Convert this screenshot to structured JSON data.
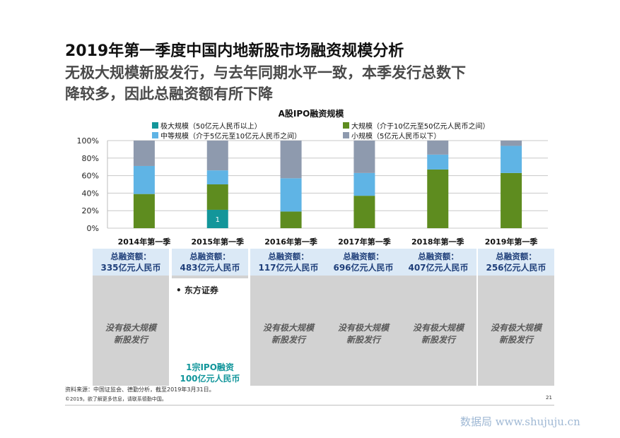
{
  "title": {
    "main": "2019年第一季度中国内地新股市场融资规模分析",
    "sub_line1": "无极大规模新股发行，与去年同期水平一致，本季发行总数下",
    "sub_line2": "降较多，因此总融资额有所下降"
  },
  "colors": {
    "extra_large": "#13969a",
    "large": "#5e8c1f",
    "medium": "#5fb4e5",
    "small": "#8e9aae",
    "panel_head_bg": "#dbe9f6",
    "panel_body_bg": "#d2d2d2",
    "teal_text": "#12969b"
  },
  "chart_data": {
    "type": "bar",
    "title": "A股IPO融资规模",
    "categories": [
      "2014年第一季",
      "2015年第一季",
      "2016年第一季",
      "2017年第一季",
      "2018年第一季",
      "2019年第一季"
    ],
    "ylim": [
      0,
      100
    ],
    "yticks": [
      "0%",
      "20%",
      "40%",
      "60%",
      "80%",
      "100%"
    ],
    "grid": true,
    "legend_position": "top",
    "series": [
      {
        "name": "极大规模（50亿元人民币以上）",
        "color_key": "extra_large",
        "values": [
          0,
          21,
          0,
          0,
          0,
          0
        ],
        "labels": [
          "",
          "1",
          "",
          "",
          "",
          ""
        ]
      },
      {
        "name": "大规模（介于10亿元至50亿元人民币之间）",
        "color_key": "large",
        "values": [
          39,
          29,
          19,
          37,
          67,
          63
        ],
        "labels": [
          "",
          "",
          "",
          "",
          "",
          ""
        ]
      },
      {
        "name": "中等规模（介于5亿元至10亿元人民币之间）",
        "color_key": "medium",
        "values": [
          32,
          16,
          38,
          26,
          17,
          31
        ],
        "labels": [
          "",
          "",
          "",
          "",
          "",
          ""
        ]
      },
      {
        "name": "小规模（5亿元人民币以下）",
        "color_key": "small",
        "values": [
          29,
          34,
          43,
          37,
          16,
          6
        ],
        "labels": [
          "",
          "",
          "",
          "",
          "",
          ""
        ]
      }
    ]
  },
  "panels": [
    {
      "head": "总融资额：",
      "amount": "335亿元人民币",
      "note1": "没有极大规模",
      "note2": "新股发行",
      "bullet": "",
      "teal1": "",
      "teal2": ""
    },
    {
      "head": "总融资额：",
      "amount": "483亿元人民币",
      "note1": "",
      "note2": "",
      "bullet": "• 东方证券",
      "teal1": "1宗IPO融资",
      "teal2": "100亿元人民币"
    },
    {
      "head": "总融资额：",
      "amount": "117亿元人民币",
      "note1": "没有极大规模",
      "note2": "新股发行",
      "bullet": "",
      "teal1": "",
      "teal2": ""
    },
    {
      "head": "总融资额：",
      "amount": "696亿元人民币",
      "note1": "没有极大规模",
      "note2": "新股发行",
      "bullet": "",
      "teal1": "",
      "teal2": ""
    },
    {
      "head": "总融资额：",
      "amount": "407亿元人民币",
      "note1": "没有极大规模",
      "note2": "新股发行",
      "bullet": "",
      "teal1": "",
      "teal2": ""
    },
    {
      "head": "总融资额：",
      "amount": "256亿元人民币",
      "note1": "没有极大规模",
      "note2": "新股发行",
      "bullet": "",
      "teal1": "",
      "teal2": ""
    }
  ],
  "footer": {
    "source": "资料来源：中国证监会、德勤分析，截至2019年3月31日。",
    "copyright": "©2019。欲了解更多信息，请联系德勤中国。",
    "page": "21",
    "watermark": "数据局 www.shujuju.cn"
  }
}
